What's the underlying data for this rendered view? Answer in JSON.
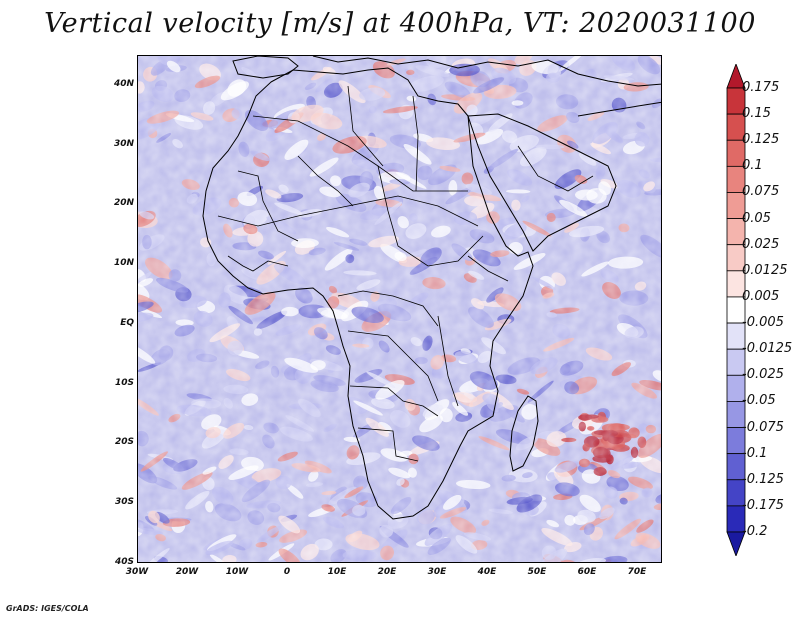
{
  "title": "Vertical velocity [m/s] at 400hPa, VT: 2020031100",
  "map": {
    "region": "Africa",
    "variable": "Vertical velocity",
    "units": "m/s",
    "pressure_level": "400hPa",
    "valid_time": "2020031100",
    "lat_range": [
      -40,
      45
    ],
    "lon_range": [
      -30,
      75
    ],
    "lat_ticks": [
      {
        "value": 40,
        "label": "40N"
      },
      {
        "value": 30,
        "label": "30N"
      },
      {
        "value": 20,
        "label": "20N"
      },
      {
        "value": 10,
        "label": "10N"
      },
      {
        "value": 0,
        "label": "EQ"
      },
      {
        "value": -10,
        "label": "10S"
      },
      {
        "value": -20,
        "label": "20S"
      },
      {
        "value": -30,
        "label": "30S"
      },
      {
        "value": -40,
        "label": "40S"
      }
    ],
    "lon_ticks": [
      {
        "value": -30,
        "label": "30W"
      },
      {
        "value": -20,
        "label": "20W"
      },
      {
        "value": -10,
        "label": "10W"
      },
      {
        "value": 0,
        "label": "0"
      },
      {
        "value": 10,
        "label": "10E"
      },
      {
        "value": 20,
        "label": "20E"
      },
      {
        "value": 30,
        "label": "30E"
      },
      {
        "value": 40,
        "label": "40E"
      },
      {
        "value": 50,
        "label": "50E"
      },
      {
        "value": 60,
        "label": "60E"
      },
      {
        "value": 70,
        "label": "70E"
      }
    ]
  },
  "colorbar": {
    "levels": [
      "0.175",
      "0.15",
      "0.125",
      "0.1",
      "0.075",
      "0.05",
      "0.025",
      "0.0125",
      "0.005",
      "-0.005",
      "-0.0125",
      "-0.025",
      "-0.05",
      "-0.075",
      "-0.1",
      "-0.125",
      "-0.175",
      "-0.2"
    ],
    "colors": [
      "#b2182b",
      "#c8343a",
      "#d6504f",
      "#e06a66",
      "#e8847e",
      "#ef9c95",
      "#f4b4ad",
      "#f8cbc6",
      "#fce4e1",
      "#ffffff",
      "#e2e2f8",
      "#c9c9f2",
      "#b0b0ec",
      "#9797e4",
      "#7c7cdc",
      "#6060d2",
      "#4444c6",
      "#2a2ab8",
      "#1a1aa0"
    ]
  },
  "credit": "GrADS: IGES/COLA"
}
